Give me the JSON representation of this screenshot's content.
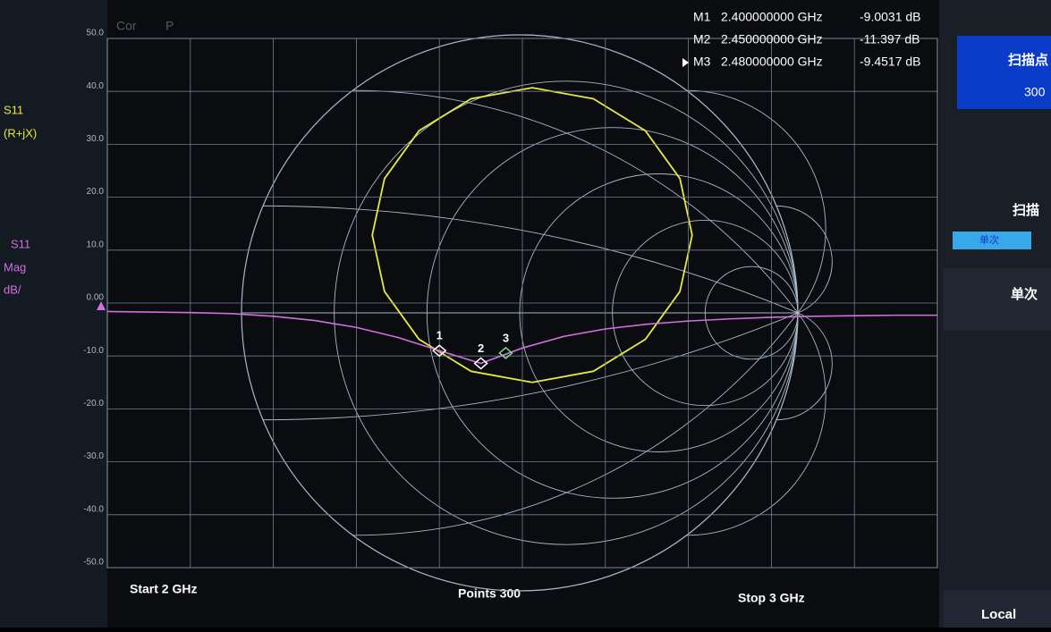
{
  "chart_data": [
    {
      "type": "line",
      "x": [
        2.0,
        2.05,
        2.1,
        2.15,
        2.2,
        2.25,
        2.3,
        2.35,
        2.4,
        2.45,
        2.5,
        2.55,
        2.6,
        2.65,
        2.7,
        2.75,
        2.8,
        2.85,
        2.9,
        2.95,
        3.0
      ],
      "xlim": [
        2,
        3
      ],
      "ylim": [
        -50,
        50
      ],
      "yticks": [
        {
          "value": 50,
          "label": "50.0"
        },
        {
          "value": 40,
          "label": "40.0"
        },
        {
          "value": 30,
          "label": "30.0"
        },
        {
          "value": 20,
          "label": "20.0"
        },
        {
          "value": 10,
          "label": "10.0"
        },
        {
          "value": 0,
          "label": "0.00"
        },
        {
          "value": -10,
          "label": "-10.0"
        },
        {
          "value": -20,
          "label": "-20.0"
        },
        {
          "value": -30,
          "label": "-30.0"
        },
        {
          "value": -40,
          "label": "-40.0"
        },
        {
          "value": -50,
          "label": "-50.0"
        }
      ],
      "grid": true,
      "series": [
        {
          "name": "S11",
          "color": "#d070e0",
          "values": [
            -1.6,
            -1.7,
            -1.8,
            -2.0,
            -2.5,
            -3.3,
            -4.6,
            -6.5,
            -9.0,
            -11.4,
            -8.5,
            -6.3,
            -4.9,
            -4.0,
            -3.4,
            -3.0,
            -2.7,
            -2.5,
            -2.4,
            -2.3,
            -2.3
          ]
        }
      ],
      "markers": [
        {
          "name": "M1",
          "tag": "1",
          "x": 2.4,
          "x_label": "2.400000000 GHz",
          "value": -9.0031,
          "value_label": "-9.0031 dB"
        },
        {
          "name": "M2",
          "tag": "2",
          "x": 2.45,
          "x_label": "2.450000000 GHz",
          "value": -11.397,
          "value_label": "-11.397 dB"
        },
        {
          "name": "M3",
          "tag": "3",
          "x": 2.48,
          "x_label": "2.480000000 GHz",
          "value": -9.4517,
          "value_label": "-9.4517 dB"
        }
      ],
      "active_marker": 2
    },
    {
      "type": "smith",
      "x": [
        0.045,
        0.265,
        0.452,
        0.576,
        0.62,
        0.576,
        0.452,
        0.265,
        0.045,
        -0.175,
        -0.362,
        -0.486,
        -0.53,
        -0.486,
        -0.362,
        -0.175,
        0.045
      ],
      "series": [
        {
          "name": "S11",
          "color": "#e8e840",
          "values": [
            -0.25,
            -0.21,
            -0.095,
            0.077,
            0.28,
            0.483,
            0.655,
            0.77,
            0.81,
            0.77,
            0.655,
            0.483,
            0.28,
            0.077,
            -0.095,
            -0.21,
            -0.25
          ]
        }
      ]
    }
  ],
  "ui": {
    "cor": "Cor",
    "p": "P",
    "trace1": "S11",
    "trace1_format": "(R+jX)",
    "trace2": "S11",
    "trace2_format": "Mag",
    "trace2_scale": "dB/",
    "start": "Start 2 GHz",
    "points": "Points 300",
    "stop": "Stop 3 GHz",
    "softkeys": {
      "sweep_points": "扫描点",
      "sweep_points_value": "300",
      "sweep": "扫描",
      "single_tag": "单次",
      "single": "单次",
      "local": "Local"
    }
  }
}
